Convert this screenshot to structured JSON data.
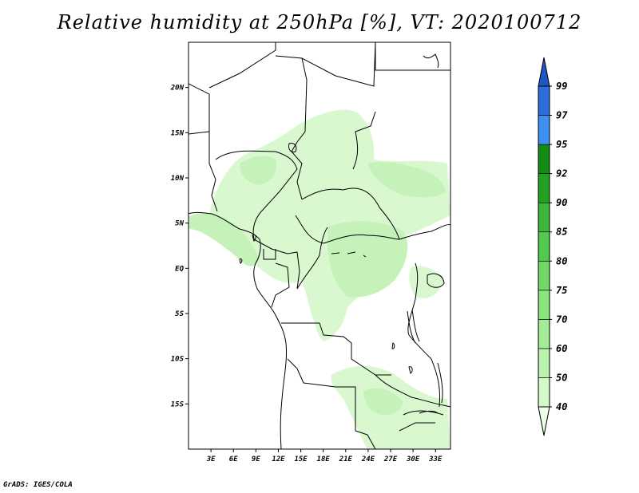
{
  "title": "Relative humidity at 250hPa [%], VT: 2020100712",
  "credit": "GrADS: IGES/COLA",
  "map": {
    "lon_range": [
      0,
      35
    ],
    "lat_range": [
      -20,
      25
    ],
    "lat_ticks": [
      {
        "value": 20,
        "label": "20N"
      },
      {
        "value": 15,
        "label": "15N"
      },
      {
        "value": 10,
        "label": "10N"
      },
      {
        "value": 5,
        "label": "5N"
      },
      {
        "value": 0,
        "label": "EQ"
      },
      {
        "value": -5,
        "label": "5S"
      },
      {
        "value": -10,
        "label": "10S"
      },
      {
        "value": -15,
        "label": "15S"
      }
    ],
    "lon_ticks": [
      {
        "value": 3,
        "label": "3E"
      },
      {
        "value": 6,
        "label": "6E"
      },
      {
        "value": 9,
        "label": "9E"
      },
      {
        "value": 12,
        "label": "12E"
      },
      {
        "value": 15,
        "label": "15E"
      },
      {
        "value": 18,
        "label": "18E"
      },
      {
        "value": 21,
        "label": "21E"
      },
      {
        "value": 24,
        "label": "24E"
      },
      {
        "value": 27,
        "label": "27E"
      },
      {
        "value": 30,
        "label": "30E"
      },
      {
        "value": 33,
        "label": "33E"
      }
    ]
  },
  "colorbar": {
    "levels": [
      "40",
      "50",
      "60",
      "70",
      "75",
      "80",
      "85",
      "90",
      "92",
      "95",
      "97",
      "99"
    ],
    "colors": [
      "#eaffe6",
      "#d2fac8",
      "#b9f3ae",
      "#a2ec96",
      "#8be47e",
      "#6fd866",
      "#52c94e",
      "#3cb738",
      "#23a020",
      "#138a12",
      "#3d8ff0",
      "#2a6fdc",
      "#1f56c4"
    ]
  },
  "palette": {
    "light_green": "#d9f8d0",
    "mid_green": "#c4f2b8",
    "border": "#000000"
  }
}
